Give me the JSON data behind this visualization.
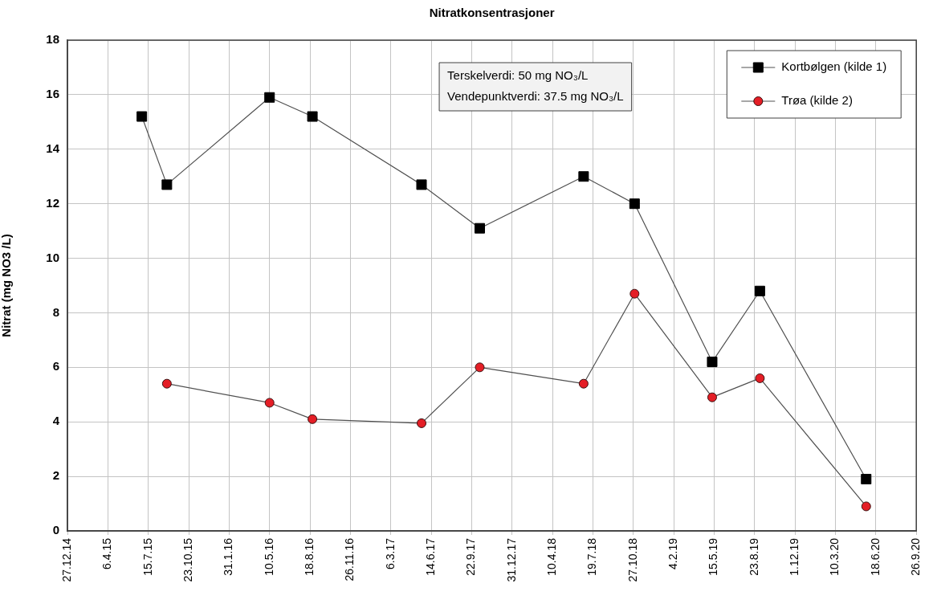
{
  "chart_data": {
    "type": "line",
    "title": "Nitratkonsentrasjoner",
    "ylabel": "Nitrat (mg NO3 /L)",
    "annotations": [
      "Terskelverdi: 50 mg NO₃/L",
      "Vendepunktverdi: 37.5 mg NO₃/L"
    ],
    "series": [
      {
        "name": "Kortbølgen (kilde 1)",
        "color": "#000000",
        "marker": "square",
        "x": [
          "2015-06-29",
          "2015-08-30",
          "2016-05-10",
          "2016-08-24",
          "2017-05-21",
          "2017-10-12",
          "2018-06-26",
          "2018-10-30",
          "2019-05-10",
          "2019-09-05",
          "2020-05-25"
        ],
        "values": [
          15.2,
          12.7,
          15.9,
          15.2,
          12.7,
          11.1,
          13.0,
          12.0,
          6.2,
          8.8,
          1.9
        ]
      },
      {
        "name": "Trøa (kilde 2)",
        "color": "#e41e26",
        "marker": "circle",
        "x": [
          "2015-08-30",
          "2016-05-10",
          "2016-08-24",
          "2017-05-21",
          "2017-10-12",
          "2018-06-26",
          "2018-10-30",
          "2019-05-10",
          "2019-09-05",
          "2020-05-25"
        ],
        "values": [
          5.4,
          4.7,
          4.1,
          3.95,
          6.0,
          5.4,
          8.7,
          4.9,
          5.6,
          0.9
        ]
      }
    ],
    "xlim": [
      "2014-12-27",
      "2020-09-26"
    ],
    "xticks": [
      {
        "value": "2014-12-27",
        "label": "27.12.14"
      },
      {
        "value": "2015-04-06",
        "label": "6.4.15"
      },
      {
        "value": "2015-07-15",
        "label": "15.7.15"
      },
      {
        "value": "2015-10-23",
        "label": "23.10.15"
      },
      {
        "value": "2016-01-31",
        "label": "31.1.16"
      },
      {
        "value": "2016-05-10",
        "label": "10.5.16"
      },
      {
        "value": "2016-08-18",
        "label": "18.8.16"
      },
      {
        "value": "2016-11-26",
        "label": "26.11.16"
      },
      {
        "value": "2017-03-06",
        "label": "6.3.17"
      },
      {
        "value": "2017-06-14",
        "label": "14.6.17"
      },
      {
        "value": "2017-09-22",
        "label": "22.9.17"
      },
      {
        "value": "2017-12-31",
        "label": "31.12.17"
      },
      {
        "value": "2018-04-10",
        "label": "10.4.18"
      },
      {
        "value": "2018-07-19",
        "label": "19.7.18"
      },
      {
        "value": "2018-10-27",
        "label": "27.10.18"
      },
      {
        "value": "2019-02-04",
        "label": "4.2.19"
      },
      {
        "value": "2019-05-15",
        "label": "15.5.19"
      },
      {
        "value": "2019-08-23",
        "label": "23.8.19"
      },
      {
        "value": "2019-12-01",
        "label": "1.12.19"
      },
      {
        "value": "2020-03-10",
        "label": "10.3.20"
      },
      {
        "value": "2020-06-18",
        "label": "18.6.20"
      },
      {
        "value": "2020-09-26",
        "label": "26.9.20"
      }
    ],
    "ylim": [
      0,
      18
    ],
    "yticks": [
      0,
      2,
      4,
      6,
      8,
      10,
      12,
      14,
      16,
      18
    ],
    "grid": true,
    "legend": "top right"
  }
}
